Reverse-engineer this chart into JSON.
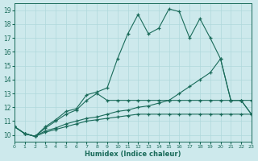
{
  "xlabel": "Humidex (Indice chaleur)",
  "xlim": [
    0,
    23
  ],
  "ylim": [
    9.5,
    19.5
  ],
  "xticks": [
    0,
    1,
    2,
    3,
    4,
    5,
    6,
    7,
    8,
    9,
    10,
    11,
    12,
    13,
    14,
    15,
    16,
    17,
    18,
    19,
    20,
    21,
    22,
    23
  ],
  "yticks": [
    10,
    11,
    12,
    13,
    14,
    15,
    16,
    17,
    18,
    19
  ],
  "background_color": "#cde9ec",
  "grid_color": "#afd8dc",
  "line_color": "#1a6b5a",
  "line1_x": [
    0,
    1,
    2,
    3,
    4,
    5,
    6,
    7,
    8,
    9,
    10,
    11,
    12,
    13,
    14,
    15,
    16,
    17,
    18,
    19,
    20,
    21,
    22,
    23
  ],
  "line1_y": [
    10.6,
    10.1,
    9.9,
    10.6,
    11.1,
    11.7,
    11.9,
    12.9,
    13.1,
    13.4,
    15.5,
    17.3,
    18.7,
    17.3,
    17.7,
    19.1,
    18.9,
    17.0,
    18.4,
    17.0,
    15.5,
    12.5,
    12.5,
    12.5
  ],
  "line2_x": [
    0,
    1,
    2,
    3,
    4,
    5,
    6,
    7,
    8,
    9,
    10,
    11,
    12,
    13,
    14,
    15,
    16,
    17,
    18,
    19,
    20,
    21,
    22,
    23
  ],
  "line2_y": [
    10.6,
    10.1,
    9.9,
    10.3,
    10.5,
    10.8,
    11.0,
    11.2,
    11.3,
    11.5,
    11.7,
    11.8,
    12.0,
    12.1,
    12.3,
    12.5,
    13.0,
    13.5,
    14.0,
    14.5,
    15.5,
    12.5,
    12.5,
    11.5
  ],
  "line3_x": [
    0,
    1,
    2,
    3,
    4,
    5,
    6,
    7,
    8,
    9,
    10,
    11,
    12,
    13,
    14,
    15,
    16,
    17,
    18,
    19,
    20,
    21,
    22,
    23
  ],
  "line3_y": [
    10.6,
    10.1,
    9.9,
    10.5,
    11.0,
    11.5,
    11.8,
    12.5,
    13.0,
    12.5,
    12.5,
    12.5,
    12.5,
    12.5,
    12.5,
    12.5,
    12.5,
    12.5,
    12.5,
    12.5,
    12.5,
    12.5,
    12.5,
    11.5
  ],
  "line4_x": [
    0,
    1,
    2,
    3,
    4,
    5,
    6,
    7,
    8,
    9,
    10,
    11,
    12,
    13,
    14,
    15,
    16,
    17,
    18,
    19,
    20,
    21,
    22,
    23
  ],
  "line4_y": [
    10.6,
    10.1,
    9.9,
    10.2,
    10.4,
    10.6,
    10.8,
    11.0,
    11.1,
    11.2,
    11.3,
    11.4,
    11.5,
    11.5,
    11.5,
    11.5,
    11.5,
    11.5,
    11.5,
    11.5,
    11.5,
    11.5,
    11.5,
    11.5
  ]
}
